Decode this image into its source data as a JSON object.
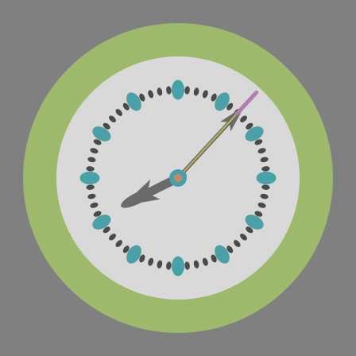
{
  "clock": {
    "time_shown": {
      "hour": 8,
      "minute": 7,
      "second": 7
    },
    "hour_markers": 12,
    "minute_ticks": 60,
    "colors": {
      "background": "#808080",
      "outer_ring": "#9dba6c",
      "face": "#d9d9d9",
      "tick": "#4a4a4a",
      "hour_marker": "#4aa0a8",
      "hands": "#6a6a6a",
      "second_hand_tip": "#b07db0",
      "second_hand": "#c2b452",
      "center_cap": "#4aa0a8",
      "center_dot": "#c98a6a"
    },
    "icons": {
      "hour_hand": "arrow-hand-icon",
      "minute_hand": "arrow-hand-icon",
      "second_hand": "pin-hand-icon"
    }
  }
}
